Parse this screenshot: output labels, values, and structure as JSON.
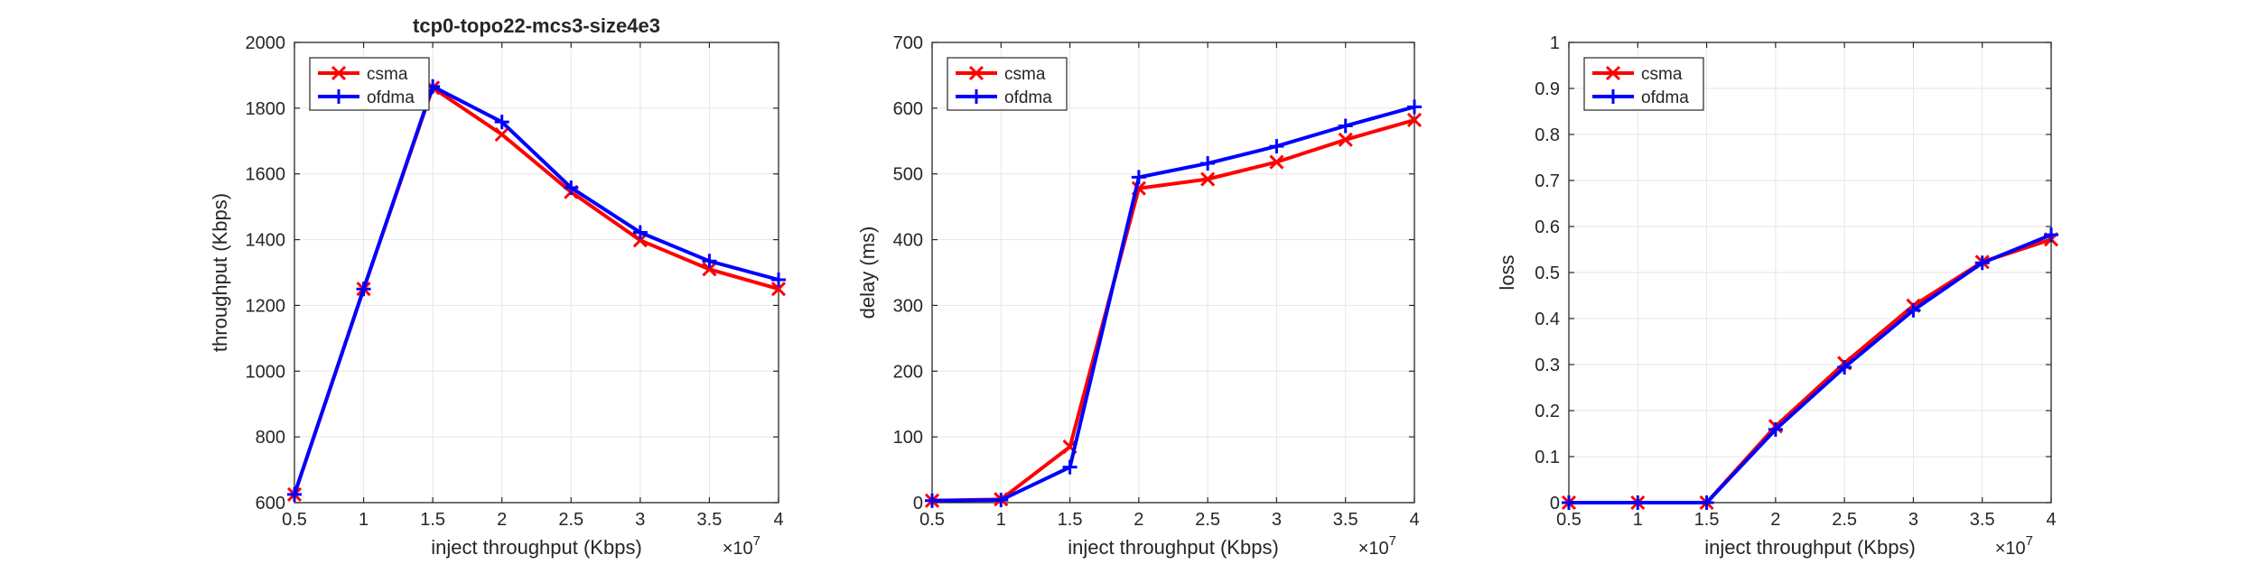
{
  "figure": {
    "background": "#ffffff",
    "exponent_base": "×10",
    "exponent_power": "7"
  },
  "chart_data": [
    {
      "type": "line",
      "title": "tcp0-topo22-mcs3-size4e3",
      "xlabel": "inject throughput (Kbps)",
      "ylabel": "throughput (Kbps)",
      "x": [
        0.5,
        1,
        1.5,
        2,
        2.5,
        3,
        3.5,
        4
      ],
      "x_multiplier": "1e7",
      "xlim": [
        0.5,
        4
      ],
      "ylim": [
        600,
        2000
      ],
      "xticks": [
        "0.5",
        "1",
        "1.5",
        "2",
        "2.5",
        "3",
        "3.5",
        "4"
      ],
      "yticks": [
        "600",
        "800",
        "1000",
        "1200",
        "1400",
        "1600",
        "1800",
        "2000"
      ],
      "grid": true,
      "legend_position": "top-left",
      "series": [
        {
          "name": "csma",
          "color": "#ff0000",
          "marker": "x",
          "values": [
            625,
            1250,
            1862,
            1720,
            1545,
            1398,
            1310,
            1250
          ]
        },
        {
          "name": "ofdma",
          "color": "#0000ff",
          "marker": "+",
          "values": [
            625,
            1250,
            1866,
            1758,
            1558,
            1422,
            1335,
            1278
          ]
        }
      ]
    },
    {
      "type": "line",
      "title": "",
      "xlabel": "inject throughput (Kbps)",
      "ylabel": "delay (ms)",
      "x": [
        0.5,
        1,
        1.5,
        2,
        2.5,
        3,
        3.5,
        4
      ],
      "x_multiplier": "1e7",
      "xlim": [
        0.5,
        4
      ],
      "ylim": [
        0,
        700
      ],
      "xticks": [
        "0.5",
        "1",
        "1.5",
        "2",
        "2.5",
        "3",
        "3.5",
        "4"
      ],
      "yticks": [
        "0",
        "100",
        "200",
        "300",
        "400",
        "500",
        "600",
        "700"
      ],
      "grid": true,
      "legend_position": "top-left",
      "series": [
        {
          "name": "csma",
          "color": "#ff0000",
          "marker": "x",
          "values": [
            3,
            5,
            85,
            478,
            492,
            518,
            552,
            582
          ]
        },
        {
          "name": "ofdma",
          "color": "#0000ff",
          "marker": "+",
          "values": [
            3,
            4,
            54,
            495,
            516,
            542,
            573,
            602
          ]
        }
      ]
    },
    {
      "type": "line",
      "title": "",
      "xlabel": "inject throughput (Kbps)",
      "ylabel": "loss",
      "x": [
        0.5,
        1,
        1.5,
        2,
        2.5,
        3,
        3.5,
        4
      ],
      "x_multiplier": "1e7",
      "xlim": [
        0.5,
        4
      ],
      "ylim": [
        0,
        1
      ],
      "xticks": [
        "0.5",
        "1",
        "1.5",
        "2",
        "2.5",
        "3",
        "3.5",
        "4"
      ],
      "yticks": [
        "0",
        "0.1",
        "0.2",
        "0.3",
        "0.4",
        "0.5",
        "0.6",
        "0.7",
        "0.8",
        "0.9",
        "1"
      ],
      "grid": true,
      "legend_position": "top-left",
      "series": [
        {
          "name": "csma",
          "color": "#ff0000",
          "marker": "x",
          "values": [
            0,
            0,
            0,
            0.166,
            0.303,
            0.428,
            0.523,
            0.572
          ]
        },
        {
          "name": "ofdma",
          "color": "#0000ff",
          "marker": "+",
          "values": [
            0,
            0,
            0,
            0.159,
            0.294,
            0.418,
            0.521,
            0.582
          ]
        }
      ]
    }
  ]
}
